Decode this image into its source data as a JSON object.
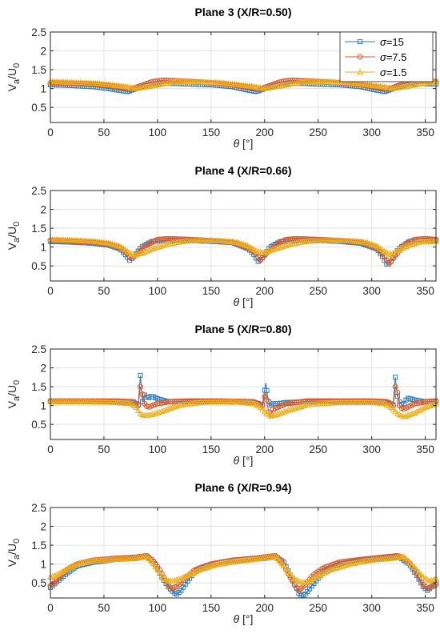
{
  "colors": {
    "s15": "#2f7ec0",
    "s75": "#d85a2a",
    "s15b": "#edb11f",
    "grid": "#e3e3e3",
    "axis": "#262626"
  },
  "legend": {
    "items": [
      {
        "label": "σ=15",
        "marker": "square"
      },
      {
        "label": "σ=7.5",
        "marker": "circle"
      },
      {
        "label": "σ=1.5",
        "marker": "triangle"
      }
    ],
    "placement": "top-right of first panel"
  },
  "chart_data": [
    {
      "type": "line",
      "title": "Plane 3 (X/R=0.50)",
      "xlabel": "θ [°]",
      "ylabel": "Va/U0",
      "xlim": [
        0,
        360
      ],
      "ylim": [
        0.1,
        2.5
      ],
      "xticks": [
        0,
        50,
        100,
        150,
        200,
        250,
        300,
        350
      ],
      "yticks": [
        0.5,
        1,
        1.5,
        2,
        2.5
      ],
      "grid": true,
      "series": [
        {
          "name": "σ=15",
          "x": [
            0,
            20,
            40,
            55,
            65,
            72,
            80,
            95,
            110,
            130,
            150,
            170,
            183,
            192,
            200,
            215,
            230,
            250,
            270,
            290,
            303,
            312,
            320,
            335,
            350,
            360
          ],
          "y": [
            1.1,
            1.08,
            1.05,
            1.0,
            0.95,
            0.92,
            1.0,
            1.12,
            1.14,
            1.12,
            1.1,
            1.05,
            0.97,
            0.92,
            1.0,
            1.12,
            1.14,
            1.12,
            1.1,
            1.05,
            0.97,
            0.92,
            1.0,
            1.12,
            1.13,
            1.12
          ]
        },
        {
          "name": "σ=7.5",
          "x": [
            0,
            20,
            40,
            55,
            68,
            75,
            82,
            95,
            105,
            120,
            140,
            160,
            175,
            188,
            195,
            202,
            215,
            225,
            240,
            260,
            280,
            295,
            308,
            315,
            322,
            335,
            345,
            360
          ],
          "y": [
            1.15,
            1.14,
            1.12,
            1.08,
            1.02,
            0.98,
            1.05,
            1.18,
            1.22,
            1.2,
            1.17,
            1.13,
            1.08,
            1.02,
            0.98,
            1.05,
            1.18,
            1.22,
            1.2,
            1.17,
            1.13,
            1.08,
            1.02,
            0.98,
            1.05,
            1.18,
            1.22,
            1.18
          ]
        },
        {
          "name": "σ=1.5",
          "x": [
            0,
            20,
            40,
            55,
            70,
            80,
            90,
            105,
            120,
            140,
            160,
            175,
            190,
            200,
            210,
            225,
            240,
            260,
            280,
            295,
            310,
            320,
            330,
            345,
            360
          ],
          "y": [
            1.18,
            1.16,
            1.14,
            1.1,
            1.05,
            1.0,
            1.04,
            1.12,
            1.18,
            1.17,
            1.15,
            1.1,
            1.05,
            1.0,
            1.04,
            1.12,
            1.18,
            1.17,
            1.15,
            1.1,
            1.05,
            1.0,
            1.04,
            1.12,
            1.18
          ]
        }
      ]
    },
    {
      "type": "line",
      "title": "Plane 4 (X/R=0.66)",
      "xlabel": "θ [°]",
      "ylabel": "Va/U0",
      "xlim": [
        0,
        360
      ],
      "ylim": [
        0.1,
        2.5
      ],
      "xticks": [
        0,
        50,
        100,
        150,
        200,
        250,
        300,
        350
      ],
      "yticks": [
        0.5,
        1,
        1.5,
        2,
        2.5
      ],
      "grid": true,
      "series": [
        {
          "name": "σ=15",
          "x": [
            0,
            20,
            40,
            55,
            65,
            70,
            74,
            78,
            85,
            95,
            110,
            130,
            150,
            170,
            185,
            190,
            194,
            198,
            205,
            215,
            230,
            250,
            270,
            290,
            305,
            310,
            314,
            318,
            325,
            335,
            350,
            360
          ],
          "y": [
            1.15,
            1.13,
            1.1,
            1.05,
            0.95,
            0.8,
            0.65,
            0.75,
            1.0,
            1.15,
            1.18,
            1.17,
            1.15,
            1.12,
            0.95,
            0.8,
            0.62,
            0.72,
            1.0,
            1.15,
            1.18,
            1.17,
            1.15,
            1.1,
            0.95,
            0.75,
            0.55,
            0.62,
            0.95,
            1.15,
            1.18,
            1.17
          ]
        },
        {
          "name": "σ=7.5",
          "x": [
            0,
            20,
            40,
            55,
            65,
            72,
            76,
            80,
            90,
            100,
            110,
            130,
            150,
            170,
            185,
            192,
            196,
            200,
            210,
            220,
            230,
            250,
            270,
            290,
            305,
            312,
            316,
            320,
            330,
            340,
            350,
            360
          ],
          "y": [
            1.18,
            1.16,
            1.13,
            1.08,
            0.98,
            0.82,
            0.7,
            0.8,
            1.05,
            1.2,
            1.22,
            1.2,
            1.17,
            1.13,
            0.98,
            0.82,
            0.65,
            0.78,
            1.05,
            1.2,
            1.22,
            1.2,
            1.17,
            1.13,
            0.98,
            0.75,
            0.55,
            0.7,
            1.05,
            1.2,
            1.22,
            1.2
          ]
        },
        {
          "name": "σ=1.5",
          "x": [
            0,
            20,
            40,
            55,
            65,
            72,
            78,
            85,
            95,
            110,
            125,
            140,
            160,
            175,
            185,
            193,
            200,
            210,
            225,
            240,
            260,
            280,
            295,
            305,
            312,
            318,
            325,
            335,
            345,
            360
          ],
          "y": [
            1.2,
            1.18,
            1.15,
            1.1,
            1.02,
            0.88,
            0.78,
            0.83,
            0.95,
            1.08,
            1.15,
            1.17,
            1.16,
            1.12,
            1.02,
            0.88,
            0.85,
            0.95,
            1.08,
            1.15,
            1.17,
            1.16,
            1.12,
            1.02,
            0.88,
            0.8,
            0.92,
            1.05,
            1.13,
            1.15
          ]
        }
      ]
    },
    {
      "type": "line",
      "title": "Plane 5 (X/R=0.80)",
      "xlabel": "θ [°]",
      "ylabel": "Va/U0",
      "xlim": [
        0,
        360
      ],
      "ylim": [
        0.1,
        2.5
      ],
      "xticks": [
        0,
        50,
        100,
        150,
        200,
        250,
        300,
        350
      ],
      "yticks": [
        0.5,
        1,
        1.5,
        2,
        2.5
      ],
      "grid": true,
      "series": [
        {
          "name": "σ=15",
          "x": [
            0,
            30,
            60,
            78,
            82,
            84,
            86,
            88,
            91,
            95,
            100,
            110,
            130,
            160,
            190,
            198,
            201,
            203,
            205,
            208,
            212,
            220,
            240,
            270,
            300,
            315,
            320,
            322,
            324,
            326,
            329,
            333,
            340,
            350,
            360
          ],
          "y": [
            1.1,
            1.1,
            1.1,
            1.08,
            1.02,
            1.8,
            1.1,
            1.28,
            1.2,
            1.25,
            1.18,
            1.1,
            1.1,
            1.1,
            1.08,
            1.02,
            1.6,
            1.2,
            1.0,
            1.05,
            1.05,
            1.08,
            1.1,
            1.1,
            1.1,
            1.08,
            1.02,
            1.75,
            1.25,
            1.1,
            1.0,
            1.2,
            1.15,
            1.1,
            1.1
          ]
        },
        {
          "name": "σ=7.5",
          "x": [
            0,
            30,
            60,
            78,
            82,
            84,
            86,
            88,
            91,
            95,
            100,
            110,
            130,
            160,
            190,
            198,
            201,
            203,
            205,
            208,
            212,
            220,
            240,
            270,
            300,
            315,
            320,
            322,
            324,
            326,
            329,
            333,
            340,
            350,
            360
          ],
          "y": [
            1.12,
            1.12,
            1.12,
            1.1,
            1.0,
            1.5,
            1.3,
            1.05,
            0.95,
            1.0,
            1.05,
            1.1,
            1.12,
            1.12,
            1.1,
            1.0,
            1.35,
            0.95,
            0.7,
            0.9,
            0.95,
            1.05,
            1.12,
            1.12,
            1.12,
            1.1,
            1.0,
            1.5,
            1.35,
            1.0,
            0.9,
            0.95,
            1.05,
            1.1,
            1.12
          ]
        },
        {
          "name": "σ=1.5",
          "x": [
            0,
            30,
            60,
            75,
            80,
            84,
            88,
            95,
            105,
            120,
            140,
            170,
            190,
            196,
            202,
            206,
            212,
            222,
            240,
            270,
            300,
            312,
            318,
            324,
            330,
            340,
            350,
            360
          ],
          "y": [
            1.1,
            1.1,
            1.08,
            1.05,
            0.95,
            0.78,
            0.73,
            0.76,
            0.85,
            1.0,
            1.08,
            1.1,
            1.05,
            0.95,
            0.78,
            0.72,
            0.76,
            0.87,
            1.02,
            1.08,
            1.08,
            1.05,
            0.95,
            0.78,
            0.7,
            0.8,
            0.95,
            1.05
          ]
        }
      ]
    },
    {
      "type": "line",
      "title": "Plane 6 (X/R=0.94)",
      "xlabel": "θ [°]",
      "ylabel": "Va/U0",
      "xlim": [
        0,
        360
      ],
      "ylim": [
        0.1,
        2.5
      ],
      "xticks": [
        0,
        50,
        100,
        150,
        200,
        250,
        300,
        350
      ],
      "yticks": [
        0.5,
        1,
        1.5,
        2,
        2.5
      ],
      "grid": true,
      "series": [
        {
          "name": "σ=15",
          "x": [
            0,
            5,
            15,
            25,
            40,
            60,
            80,
            90,
            97,
            103,
            110,
            115,
            118,
            122,
            128,
            135,
            145,
            160,
            180,
            200,
            210,
            218,
            224,
            230,
            233,
            238,
            245,
            255,
            270,
            290,
            310,
            325,
            335,
            342,
            348,
            352,
            356,
            360
          ],
          "y": [
            0.38,
            0.5,
            0.75,
            0.95,
            1.05,
            1.12,
            1.15,
            1.2,
            1.05,
            0.7,
            0.4,
            0.25,
            0.2,
            0.3,
            0.55,
            0.8,
            0.95,
            1.05,
            1.12,
            1.15,
            1.2,
            1.05,
            0.7,
            0.35,
            0.15,
            0.2,
            0.45,
            0.8,
            1.0,
            1.1,
            1.15,
            1.2,
            1.0,
            0.7,
            0.4,
            0.3,
            0.4,
            0.5
          ]
        },
        {
          "name": "σ=7.5",
          "x": [
            0,
            5,
            15,
            25,
            40,
            60,
            80,
            90,
            97,
            103,
            108,
            112,
            118,
            125,
            135,
            150,
            170,
            190,
            210,
            216,
            222,
            228,
            232,
            238,
            245,
            255,
            270,
            290,
            310,
            325,
            335,
            342,
            348,
            352,
            356,
            360
          ],
          "y": [
            0.42,
            0.55,
            0.85,
            1.0,
            1.1,
            1.15,
            1.18,
            1.22,
            1.05,
            0.8,
            0.55,
            0.35,
            0.4,
            0.6,
            0.85,
            1.0,
            1.1,
            1.15,
            1.22,
            1.05,
            0.75,
            0.45,
            0.3,
            0.45,
            0.7,
            0.9,
            1.05,
            1.12,
            1.18,
            1.22,
            1.05,
            0.75,
            0.45,
            0.35,
            0.4,
            0.45
          ]
        },
        {
          "name": "σ=1.5",
          "x": [
            0,
            5,
            15,
            25,
            40,
            60,
            80,
            90,
            95,
            100,
            105,
            110,
            115,
            122,
            130,
            140,
            155,
            170,
            190,
            205,
            210,
            215,
            222,
            228,
            235,
            242,
            250,
            262,
            280,
            300,
            320,
            330,
            335,
            342,
            348,
            354,
            360
          ],
          "y": [
            0.65,
            0.7,
            0.85,
            1.0,
            1.08,
            1.12,
            1.15,
            1.2,
            1.05,
            0.85,
            0.65,
            0.55,
            0.55,
            0.62,
            0.72,
            0.85,
            0.98,
            1.05,
            1.12,
            1.18,
            1.2,
            1.05,
            0.8,
            0.6,
            0.5,
            0.55,
            0.68,
            0.85,
            1.0,
            1.1,
            1.15,
            1.2,
            1.05,
            0.85,
            0.65,
            0.55,
            0.6
          ]
        }
      ]
    }
  ]
}
